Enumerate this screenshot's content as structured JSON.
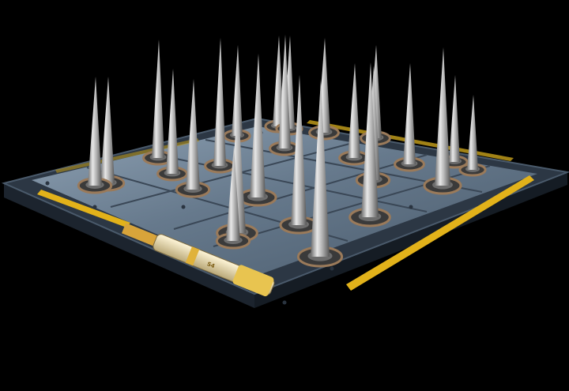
{
  "scene": {
    "subject": "spike-trap-floor-panel",
    "background_color": "#000000",
    "colors": {
      "plate_edge": "#26313d",
      "plate_edge_light": "#4a5a6b",
      "plate_top": "#5d7185",
      "plate_top_light": "#8fa2b4",
      "plate_panel_dark": "#3c4a58",
      "hazard_stripe": "#e2b21a",
      "spike_light": "#d9d9d9",
      "spike_dark": "#5e5e5e",
      "spike_base_ring": "#8a6a4a",
      "canister_body": "#e8dfc0",
      "canister_band": "#e0b23a"
    },
    "canister_text": "S4",
    "spike_count": 24
  }
}
